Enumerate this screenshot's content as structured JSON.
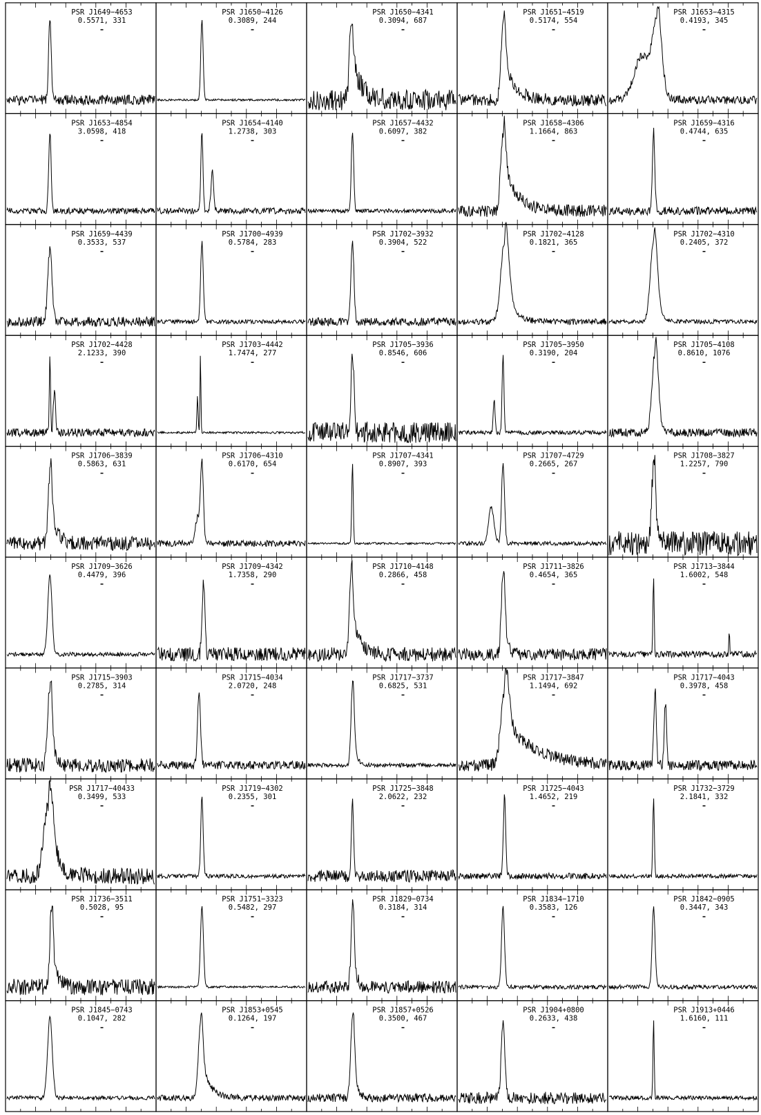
{
  "chart_data": {
    "type": "line",
    "layout": {
      "rows": 10,
      "cols": 5
    },
    "axes": {
      "xlim": [
        0,
        1
      ],
      "ylim": [
        0,
        1
      ],
      "tick_labels": false
    },
    "line_color": "#000000",
    "panels": [
      {
        "label": "PSR J1649−4653",
        "info": "0.5571, 331",
        "peaks": [
          [
            0.29,
            1.0,
            0.009,
            0.03
          ]
        ],
        "noise": 0.05,
        "tail": 0
      },
      {
        "label": "PSR J1650−4126",
        "info": "0.3089, 244",
        "peaks": [
          [
            0.3,
            1.0,
            0.008,
            0.0
          ]
        ],
        "noise": 0.01,
        "tail": 0
      },
      {
        "label": "PSR J1650−4341",
        "info": "0.3094, 687",
        "peaks": [
          [
            0.29,
            0.92,
            0.012,
            0.0
          ]
        ],
        "noise": 0.1,
        "tail": 0.06
      },
      {
        "label": "PSR J1651−4519",
        "info": "0.5174, 554",
        "peaks": [
          [
            0.3,
            0.95,
            0.014,
            0.0
          ]
        ],
        "noise": 0.06,
        "tail": 0.07
      },
      {
        "label": "PSR J1653−4315",
        "info": "0.4193, 345",
        "peaks": [
          [
            0.32,
            0.95,
            0.03,
            0.0
          ],
          [
            0.22,
            0.55,
            0.05,
            0.0
          ]
        ],
        "noise": 0.04,
        "tail": 0.03
      },
      {
        "label": "PSR J1653−4854",
        "info": "3.0598, 418",
        "peaks": [
          [
            0.29,
            1.0,
            0.008,
            0.0
          ]
        ],
        "noise": 0.03,
        "tail": 0
      },
      {
        "label": "PSR J1654−4140",
        "info": "1.2738, 303",
        "peaks": [
          [
            0.3,
            1.0,
            0.007,
            0.0
          ],
          [
            0.37,
            0.48,
            0.009,
            0.0
          ]
        ],
        "noise": 0.03,
        "tail": 0
      },
      {
        "label": "PSR J1657−4432",
        "info": "0.6097, 382",
        "peaks": [
          [
            0.3,
            1.0,
            0.008,
            0.0
          ]
        ],
        "noise": 0.02,
        "tail": 0
      },
      {
        "label": "PSR J1658−4306",
        "info": "1.1664, 863",
        "peaks": [
          [
            0.3,
            0.95,
            0.016,
            0.0
          ]
        ],
        "noise": 0.06,
        "tail": 0.09
      },
      {
        "label": "PSR J1659−4316",
        "info": "0.4744, 635",
        "peaks": [
          [
            0.3,
            1.0,
            0.008,
            0.0
          ]
        ],
        "noise": 0.04,
        "tail": 0
      },
      {
        "label": "PSR J1659−4439",
        "info": "0.3533, 537",
        "peaks": [
          [
            0.29,
            0.92,
            0.014,
            0.0
          ]
        ],
        "noise": 0.05,
        "tail": 0
      },
      {
        "label": "PSR J1700−4939",
        "info": "0.5784, 283",
        "peaks": [
          [
            0.3,
            1.0,
            0.009,
            0.0
          ]
        ],
        "noise": 0.02,
        "tail": 0
      },
      {
        "label": "PSR J1702−3932",
        "info": "0.3904, 522",
        "peaks": [
          [
            0.3,
            1.0,
            0.01,
            0.0
          ]
        ],
        "noise": 0.04,
        "tail": 0
      },
      {
        "label": "PSR J1702−4128",
        "info": "0.1821, 365",
        "peaks": [
          [
            0.31,
            1.0,
            0.025,
            0.0
          ]
        ],
        "noise": 0.03,
        "tail": 0.05
      },
      {
        "label": "PSR J1702−4310",
        "info": "0.2405, 372",
        "peaks": [
          [
            0.3,
            1.0,
            0.022,
            0.0
          ]
        ],
        "noise": 0.02,
        "tail": 0.03
      },
      {
        "label": "PSR J1702−4428",
        "info": "2.1233, 390",
        "peaks": [
          [
            0.29,
            1.0,
            0.004,
            0.0
          ],
          [
            0.32,
            0.52,
            0.007,
            0.0
          ]
        ],
        "noise": 0.04,
        "tail": 0
      },
      {
        "label": "PSR J1703−4442",
        "info": "1.7474, 277",
        "peaks": [
          [
            0.29,
            1.0,
            0.003,
            0.0
          ],
          [
            0.27,
            0.45,
            0.004,
            0.0
          ]
        ],
        "noise": 0.01,
        "tail": 0
      },
      {
        "label": "PSR J1705−3936",
        "info": "0.8546, 606",
        "peaks": [
          [
            0.3,
            1.0,
            0.01,
            0.0
          ]
        ],
        "noise": 0.1,
        "tail": 0
      },
      {
        "label": "PSR J1705−3950",
        "info": "0.3190, 204",
        "peaks": [
          [
            0.3,
            1.0,
            0.006,
            0.0
          ],
          [
            0.24,
            0.42,
            0.006,
            0.0
          ]
        ],
        "noise": 0.02,
        "tail": 0
      },
      {
        "label": "PSR J1705−4108",
        "info": "0.8610, 1076",
        "peaks": [
          [
            0.31,
            1.0,
            0.02,
            0.0
          ]
        ],
        "noise": 0.04,
        "tail": 0.02
      },
      {
        "label": "PSR J1706−3839",
        "info": "0.5863, 631",
        "peaks": [
          [
            0.29,
            0.88,
            0.012,
            0.0
          ]
        ],
        "noise": 0.07,
        "tail": 0.04
      },
      {
        "label": "PSR J1706−4310",
        "info": "0.6170, 654",
        "peaks": [
          [
            0.3,
            1.0,
            0.01,
            0.0
          ],
          [
            0.27,
            0.32,
            0.015,
            0.0
          ]
        ],
        "noise": 0.03,
        "tail": 0
      },
      {
        "label": "PSR J1707−4341",
        "info": "0.8907, 393",
        "peaks": [
          [
            0.3,
            1.0,
            0.005,
            0.0
          ]
        ],
        "noise": 0.01,
        "tail": 0
      },
      {
        "label": "PSR J1707−4729",
        "info": "0.2665, 267",
        "peaks": [
          [
            0.3,
            1.0,
            0.01,
            0.0
          ],
          [
            0.22,
            0.45,
            0.018,
            0.0
          ]
        ],
        "noise": 0.02,
        "tail": 0
      },
      {
        "label": "PSR J1708−3827",
        "info": "1.2257, 790",
        "peaks": [
          [
            0.3,
            1.0,
            0.012,
            0.0
          ]
        ],
        "noise": 0.12,
        "tail": 0.02
      },
      {
        "label": "PSR J1709−3626",
        "info": "0.4479, 396",
        "peaks": [
          [
            0.29,
            1.0,
            0.014,
            0.0
          ]
        ],
        "noise": 0.02,
        "tail": 0
      },
      {
        "label": "PSR J1709−4342",
        "info": "1.7358, 290",
        "peaks": [
          [
            0.31,
            0.9,
            0.009,
            0.0
          ]
        ],
        "noise": 0.07,
        "tail": 0
      },
      {
        "label": "PSR J1710−4148",
        "info": "0.2866, 458",
        "peaks": [
          [
            0.29,
            1.0,
            0.012,
            0.0
          ]
        ],
        "noise": 0.07,
        "tail": 0.05
      },
      {
        "label": "PSR J1711−3826",
        "info": "0.4654, 365",
        "peaks": [
          [
            0.3,
            1.0,
            0.012,
            0.0
          ]
        ],
        "noise": 0.06,
        "tail": 0.02
      },
      {
        "label": "PSR J1713−3844",
        "info": "1.6002, 548",
        "peaks": [
          [
            0.3,
            1.0,
            0.004,
            0.0
          ],
          [
            0.81,
            0.3,
            0.003,
            0.0
          ]
        ],
        "noise": 0.03,
        "tail": 0
      },
      {
        "label": "PSR J1715−3903",
        "info": "0.2785, 314",
        "peaks": [
          [
            0.29,
            1.0,
            0.014,
            0.0
          ]
        ],
        "noise": 0.07,
        "tail": 0.02
      },
      {
        "label": "PSR J1715−4034",
        "info": "2.0720, 248",
        "peaks": [
          [
            0.28,
            0.92,
            0.01,
            0.0
          ]
        ],
        "noise": 0.04,
        "tail": 0
      },
      {
        "label": "PSR J1717−3737",
        "info": "0.6825, 531",
        "peaks": [
          [
            0.3,
            1.0,
            0.01,
            0.0
          ]
        ],
        "noise": 0.02,
        "tail": 0.02
      },
      {
        "label": "PSR J1717−3847",
        "info": "1.1494, 692",
        "peaks": [
          [
            0.31,
            0.92,
            0.025,
            0.0
          ]
        ],
        "noise": 0.06,
        "tail": 0.2
      },
      {
        "label": "PSR J1717−4043",
        "info": "0.3978, 458",
        "peaks": [
          [
            0.31,
            0.95,
            0.008,
            0.0
          ],
          [
            0.38,
            0.8,
            0.008,
            0.0
          ]
        ],
        "noise": 0.05,
        "tail": 0
      },
      {
        "label": "PSR J1717−40433",
        "info": "0.3499, 533",
        "peaks": [
          [
            0.28,
            0.92,
            0.03,
            0.0
          ]
        ],
        "noise": 0.08,
        "tail": 0.05
      },
      {
        "label": "PSR J1719−4302",
        "info": "0.2355, 301",
        "peaks": [
          [
            0.3,
            1.0,
            0.008,
            0.0
          ]
        ],
        "noise": 0.02,
        "tail": 0
      },
      {
        "label": "PSR J1725−3848",
        "info": "2.0622, 232",
        "peaks": [
          [
            0.3,
            1.0,
            0.007,
            0.0
          ]
        ],
        "noise": 0.06,
        "tail": 0
      },
      {
        "label": "PSR J1725−4043",
        "info": "1.4652, 219",
        "peaks": [
          [
            0.31,
            1.0,
            0.008,
            0.0
          ]
        ],
        "noise": 0.03,
        "tail": 0
      },
      {
        "label": "PSR J1732−3729",
        "info": "2.1841, 332",
        "peaks": [
          [
            0.3,
            1.0,
            0.005,
            0.0
          ]
        ],
        "noise": 0.02,
        "tail": 0
      },
      {
        "label": "PSR J1736−3511",
        "info": "0.5028, 95",
        "peaks": [
          [
            0.3,
            1.0,
            0.01,
            0.0
          ]
        ],
        "noise": 0.08,
        "tail": 0.03
      },
      {
        "label": "PSR J1751−3323",
        "info": "0.5482, 297",
        "peaks": [
          [
            0.3,
            1.0,
            0.01,
            0.0
          ]
        ],
        "noise": 0.01,
        "tail": 0
      },
      {
        "label": "PSR J1829−0734",
        "info": "0.3184, 314",
        "peaks": [
          [
            0.3,
            1.0,
            0.01,
            0.0
          ]
        ],
        "noise": 0.06,
        "tail": 0.02
      },
      {
        "label": "PSR J1834−1710",
        "info": "0.3583, 126",
        "peaks": [
          [
            0.3,
            1.0,
            0.01,
            0.0
          ]
        ],
        "noise": 0.02,
        "tail": 0
      },
      {
        "label": "PSR J1842−0905",
        "info": "0.3447, 343",
        "peaks": [
          [
            0.3,
            1.0,
            0.01,
            0.0
          ]
        ],
        "noise": 0.02,
        "tail": 0
      },
      {
        "label": "PSR J1845−0743",
        "info": "0.1047, 282",
        "peaks": [
          [
            0.29,
            1.0,
            0.016,
            0.0
          ]
        ],
        "noise": 0.02,
        "tail": 0
      },
      {
        "label": "PSR J1853+0545",
        "info": "0.1264, 197",
        "peaks": [
          [
            0.29,
            0.95,
            0.014,
            0.0
          ]
        ],
        "noise": 0.03,
        "tail": 0.05
      },
      {
        "label": "PSR J1857+0526",
        "info": "0.3500, 467",
        "peaks": [
          [
            0.3,
            1.0,
            0.012,
            0.0
          ]
        ],
        "noise": 0.04,
        "tail": 0.02
      },
      {
        "label": "PSR J1904+0800",
        "info": "0.2633, 438",
        "peaks": [
          [
            0.3,
            1.0,
            0.012,
            0.0
          ]
        ],
        "noise": 0.06,
        "tail": 0
      },
      {
        "label": "PSR J1913+0446",
        "info": "1.6160, 111",
        "peaks": [
          [
            0.3,
            1.0,
            0.004,
            0.0
          ]
        ],
        "noise": 0.02,
        "tail": 0
      }
    ]
  }
}
